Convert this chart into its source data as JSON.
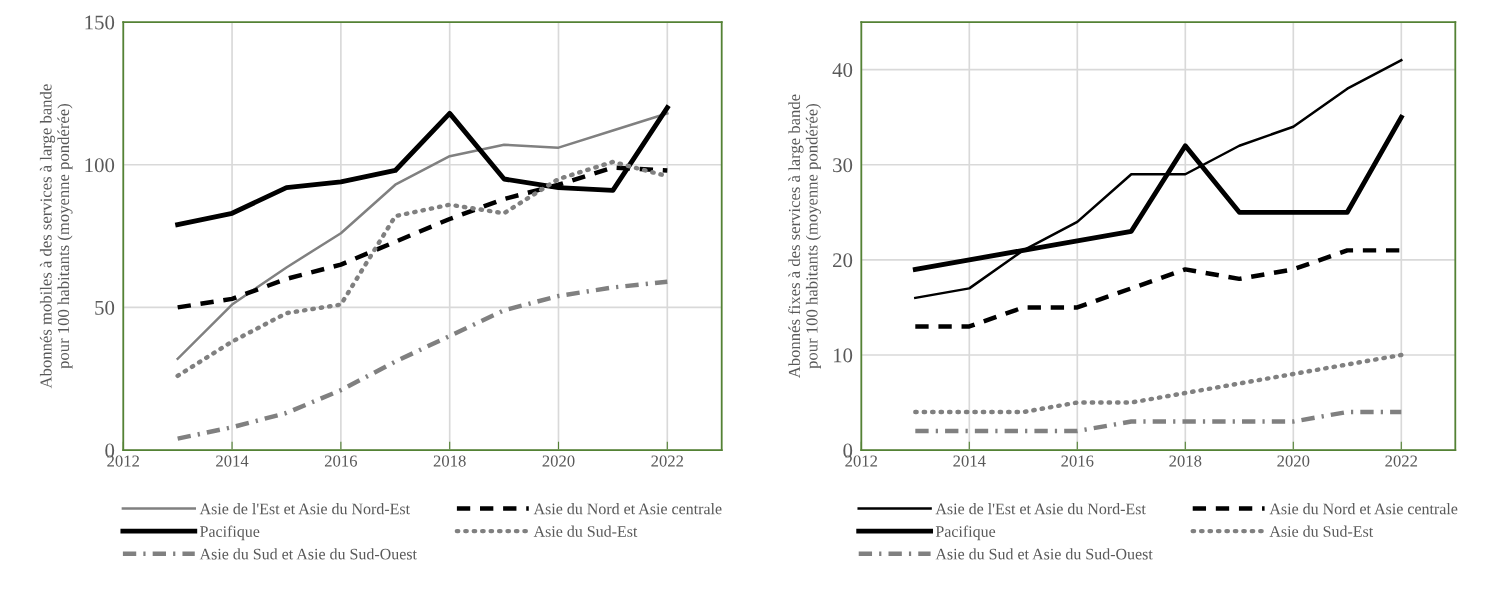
{
  "chart_data": [
    {
      "type": "line",
      "ylabel": "Abonnés mobiles à des services à large bande\npour 100 habitants (moyenne pondérée)",
      "x": [
        2013,
        2014,
        2015,
        2016,
        2017,
        2018,
        2019,
        2020,
        2021,
        2022
      ],
      "xlim": [
        2012,
        2023
      ],
      "xticks": [
        2012,
        2014,
        2016,
        2018,
        2020,
        2022
      ],
      "ylim": [
        0,
        150
      ],
      "yticks": [
        0,
        50,
        100,
        150
      ],
      "grid": true,
      "legend": "bottom",
      "series": [
        {
          "name": "Asie de l'Est et Asie du Nord-Est",
          "color": "#808080",
          "line_style": "solid",
          "values": [
            32,
            51,
            64,
            76,
            93,
            103,
            107,
            106,
            112,
            118
          ]
        },
        {
          "name": "Asie du Nord et Asie centrale",
          "color": "#000000",
          "line_style": "dashed",
          "values": [
            50,
            53,
            60,
            65,
            73,
            81,
            88,
            93,
            99,
            98
          ]
        },
        {
          "name": "Pacifique",
          "color": "#000000",
          "line_style": "solid",
          "values": [
            79,
            83,
            92,
            94,
            98,
            118,
            95,
            92,
            91,
            120
          ]
        },
        {
          "name": "Asie du Sud-Est",
          "color": "#808080",
          "line_style": "dotted",
          "values": [
            26,
            38,
            48,
            51,
            82,
            86,
            83,
            95,
            101,
            96
          ]
        },
        {
          "name": "Asie du Sud et Asie du Sud-Ouest",
          "color": "#808080",
          "line_style": "dashdot",
          "values": [
            4,
            8,
            13,
            21,
            31,
            40,
            49,
            54,
            57,
            59
          ]
        }
      ]
    },
    {
      "type": "line",
      "ylabel": "Abonnés fixes à des services à large bande\npour 100 habitants (moyenne pondérée)",
      "x": [
        2013,
        2014,
        2015,
        2016,
        2017,
        2018,
        2019,
        2020,
        2021,
        2022
      ],
      "xlim": [
        2012,
        2023
      ],
      "xticks": [
        2012,
        2014,
        2016,
        2018,
        2020,
        2022
      ],
      "ylim": [
        0,
        45
      ],
      "yticks": [
        0,
        10,
        20,
        30,
        40
      ],
      "grid": true,
      "legend": "bottom",
      "series": [
        {
          "name": "Asie de l'Est et Asie du Nord-Est",
          "color": "#000000",
          "line_style": "solid",
          "values": [
            16,
            17,
            21,
            24,
            29,
            29,
            32,
            34,
            38,
            41
          ]
        },
        {
          "name": "Asie du Nord et Asie centrale",
          "color": "#000000",
          "line_style": "dashed",
          "values": [
            13,
            13,
            15,
            15,
            17,
            19,
            18,
            19,
            21,
            21
          ]
        },
        {
          "name": "Pacifique",
          "color": "#000000",
          "line_style": "solid",
          "values": [
            19,
            20,
            21,
            22,
            23,
            32,
            25,
            25,
            25,
            35
          ]
        },
        {
          "name": "Asie du Sud-Est",
          "color": "#808080",
          "line_style": "dotted",
          "values": [
            4,
            4,
            4,
            5,
            5,
            6,
            7,
            8,
            9,
            10
          ]
        },
        {
          "name": "Asie du Sud et Asie du Sud-Ouest",
          "color": "#808080",
          "line_style": "dashdot",
          "values": [
            2,
            2,
            2,
            2,
            3,
            3,
            3,
            3,
            4,
            4
          ]
        }
      ]
    }
  ]
}
